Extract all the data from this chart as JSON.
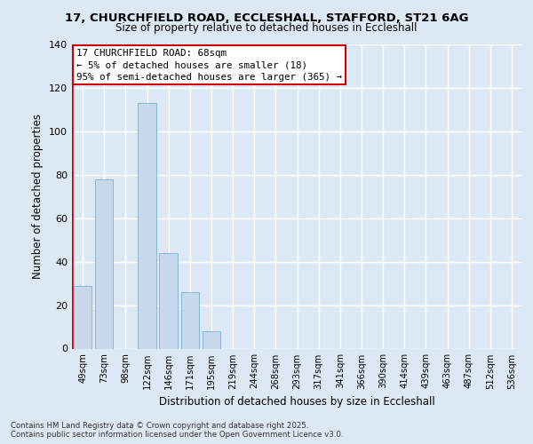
{
  "title_line1": "17, CHURCHFIELD ROAD, ECCLESHALL, STAFFORD, ST21 6AG",
  "title_line2": "Size of property relative to detached houses in Eccleshall",
  "xlabel": "Distribution of detached houses by size in Eccleshall",
  "ylabel": "Number of detached properties",
  "categories": [
    "49sqm",
    "73sqm",
    "98sqm",
    "122sqm",
    "146sqm",
    "171sqm",
    "195sqm",
    "219sqm",
    "244sqm",
    "268sqm",
    "293sqm",
    "317sqm",
    "341sqm",
    "366sqm",
    "390sqm",
    "414sqm",
    "439sqm",
    "463sqm",
    "487sqm",
    "512sqm",
    "536sqm"
  ],
  "values": [
    29,
    78,
    0,
    113,
    44,
    26,
    8,
    0,
    0,
    0,
    0,
    0,
    0,
    0,
    0,
    0,
    0,
    0,
    0,
    0,
    0
  ],
  "bar_color": "#c9d9ec",
  "bar_edge_color": "#7bafd4",
  "annotation_title": "17 CHURCHFIELD ROAD: 68sqm",
  "annotation_line1": "← 5% of detached houses are smaller (18)",
  "annotation_line2": "95% of semi-detached houses are larger (365) →",
  "annotation_box_color": "#ffffff",
  "annotation_border_color": "#cc0000",
  "ylim": [
    0,
    140
  ],
  "yticks": [
    0,
    20,
    40,
    60,
    80,
    100,
    120,
    140
  ],
  "footer_line1": "Contains HM Land Registry data © Crown copyright and database right 2025.",
  "footer_line2": "Contains public sector information licensed under the Open Government Licence v3.0.",
  "bg_color": "#dce9f5",
  "plot_bg_color": "#dce9f5",
  "grid_color": "#ffffff",
  "red_line_color": "#cc0000",
  "red_line_x": -0.5
}
